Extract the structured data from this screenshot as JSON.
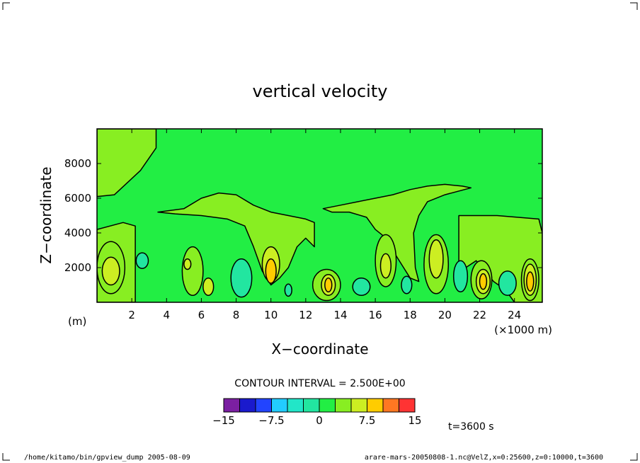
{
  "chart_data": {
    "type": "heatmap",
    "title": "vertical velocity",
    "xlabel": "X−coordinate",
    "ylabel": "Z−coordinate",
    "x_unit_label": "(×1000 m)",
    "y_unit_label": "(m)",
    "xlim": [
      0,
      25.6
    ],
    "ylim": [
      0,
      10000
    ],
    "x_ticks": [
      2,
      4,
      6,
      8,
      10,
      12,
      14,
      16,
      18,
      20,
      22,
      24
    ],
    "x_tick_labels": [
      "2",
      "4",
      "6",
      "8",
      "10",
      "12",
      "14",
      "16",
      "18",
      "20",
      "22",
      "24"
    ],
    "y_ticks": [
      2000,
      4000,
      6000,
      8000
    ],
    "y_tick_labels": [
      "2000",
      "4000",
      "6000",
      "8000"
    ],
    "contour_interval_label": "CONTOUR INTERVAL = 2.500E+00",
    "colorbar": {
      "levels": [
        -15,
        -12.5,
        -10,
        -7.5,
        -5,
        -2.5,
        0,
        2.5,
        5,
        7.5,
        10,
        12.5,
        15
      ],
      "colors": [
        "#7b1fa2",
        "#1a1acd",
        "#2244ff",
        "#22ccff",
        "#22e6c8",
        "#22e6a0",
        "#22ee44",
        "#88ee22",
        "#ccee22",
        "#ffcc00",
        "#ff7722",
        "#ff3333",
        "#ff9999"
      ],
      "tick_values": [
        -15,
        -7.5,
        0,
        7.5,
        15
      ],
      "tick_labels": [
        "−15",
        "−7.5",
        "0",
        "7.5",
        "15"
      ]
    },
    "background_level_color": "#22ee44",
    "regions": [
      {
        "level": 2.5,
        "color": "#88ee22",
        "shape": "band",
        "points": [
          [
            0,
            4200
          ],
          [
            1.5,
            4600
          ],
          [
            2.2,
            4400
          ],
          [
            2.2,
            0
          ],
          [
            0,
            0
          ]
        ]
      },
      {
        "level": 2.5,
        "color": "#88ee22",
        "shape": "band",
        "points": [
          [
            0,
            6100
          ],
          [
            1,
            6200
          ],
          [
            2.5,
            7600
          ],
          [
            3.4,
            8900
          ],
          [
            3.4,
            10000
          ],
          [
            0,
            10000
          ]
        ]
      },
      {
        "level": 2.5,
        "color": "#88ee22",
        "shape": "band",
        "points": [
          [
            3.5,
            5200
          ],
          [
            5,
            5400
          ],
          [
            6,
            6000
          ],
          [
            7,
            6300
          ],
          [
            8,
            6200
          ],
          [
            9,
            5600
          ],
          [
            10,
            5200
          ],
          [
            11,
            5000
          ],
          [
            12,
            4800
          ],
          [
            12.5,
            4600
          ],
          [
            12.5,
            3200
          ],
          [
            12,
            3700
          ],
          [
            11.5,
            3200
          ],
          [
            11,
            2000
          ],
          [
            10.5,
            1400
          ],
          [
            10,
            1000
          ],
          [
            9.5,
            1800
          ],
          [
            9,
            3200
          ],
          [
            8.5,
            4400
          ],
          [
            7.5,
            4800
          ],
          [
            6,
            5000
          ],
          [
            4.5,
            5100
          ]
        ]
      },
      {
        "level": 2.5,
        "color": "#88ee22",
        "shape": "band",
        "points": [
          [
            13,
            5400
          ],
          [
            14,
            5600
          ],
          [
            15,
            5800
          ],
          [
            16,
            6000
          ],
          [
            17,
            6200
          ],
          [
            18,
            6500
          ],
          [
            19,
            6700
          ],
          [
            20,
            6800
          ],
          [
            21,
            6700
          ],
          [
            21.5,
            6600
          ],
          [
            20,
            6200
          ],
          [
            19,
            5800
          ],
          [
            18.5,
            5000
          ],
          [
            18.2,
            4000
          ],
          [
            18.3,
            2000
          ],
          [
            18.5,
            1200
          ],
          [
            18,
            1400
          ],
          [
            17.5,
            2200
          ],
          [
            16.5,
            3800
          ],
          [
            16,
            4200
          ],
          [
            15.5,
            4900
          ],
          [
            14.5,
            5200
          ],
          [
            13.5,
            5200
          ]
        ]
      },
      {
        "level": 2.5,
        "color": "#88ee22",
        "shape": "band",
        "points": [
          [
            20.8,
            5000
          ],
          [
            23,
            5000
          ],
          [
            25.4,
            4800
          ],
          [
            25.6,
            4000
          ],
          [
            25.6,
            0
          ],
          [
            24,
            0
          ],
          [
            23.5,
            700
          ],
          [
            22.8,
            1200
          ],
          [
            22.3,
            1800
          ],
          [
            21.8,
            2400
          ],
          [
            21.2,
            2000
          ],
          [
            20.8,
            1000
          ]
        ]
      },
      {
        "level": 2.5,
        "color": "#88ee22",
        "shape": "blob",
        "cx": 5.5,
        "cy": 1800,
        "rx": 0.6,
        "ry": 1400
      },
      {
        "level": 2.5,
        "color": "#88ee22",
        "shape": "blob",
        "cx": 13.2,
        "cy": 1000,
        "rx": 0.8,
        "ry": 900
      },
      {
        "level": 2.5,
        "color": "#88ee22",
        "shape": "blob",
        "cx": 16.6,
        "cy": 2400,
        "rx": 0.6,
        "ry": 1500
      },
      {
        "level": 2.5,
        "color": "#88ee22",
        "shape": "blob",
        "cx": 19.5,
        "cy": 2200,
        "rx": 0.7,
        "ry": 1700
      },
      {
        "level": 2.5,
        "color": "#88ee22",
        "shape": "blob",
        "cx": 22.1,
        "cy": 1300,
        "rx": 0.6,
        "ry": 1100
      },
      {
        "level": 2.5,
        "color": "#88ee22",
        "shape": "blob",
        "cx": 24.9,
        "cy": 1300,
        "rx": 0.5,
        "ry": 1200
      },
      {
        "level": 2.5,
        "color": "#88ee22",
        "shape": "blob",
        "cx": 0.8,
        "cy": 2000,
        "rx": 0.8,
        "ry": 1500
      },
      {
        "level": 5,
        "color": "#ccee22",
        "shape": "blob",
        "cx": 0.8,
        "cy": 1800,
        "rx": 0.5,
        "ry": 800
      },
      {
        "level": 5,
        "color": "#ccee22",
        "shape": "blob",
        "cx": 5.2,
        "cy": 2200,
        "rx": 0.2,
        "ry": 300
      },
      {
        "level": 5,
        "color": "#ccee22",
        "shape": "blob",
        "cx": 10,
        "cy": 2200,
        "rx": 0.5,
        "ry": 1000
      },
      {
        "level": 5,
        "color": "#ccee22",
        "shape": "blob",
        "cx": 13.3,
        "cy": 1000,
        "rx": 0.4,
        "ry": 600
      },
      {
        "level": 5,
        "color": "#ccee22",
        "shape": "blob",
        "cx": 16.6,
        "cy": 2100,
        "rx": 0.3,
        "ry": 700
      },
      {
        "level": 5,
        "color": "#ccee22",
        "shape": "blob",
        "cx": 19.5,
        "cy": 2500,
        "rx": 0.4,
        "ry": 1100
      },
      {
        "level": 5,
        "color": "#ccee22",
        "shape": "blob",
        "cx": 22.2,
        "cy": 1200,
        "rx": 0.4,
        "ry": 700
      },
      {
        "level": 5,
        "color": "#ccee22",
        "shape": "blob",
        "cx": 24.9,
        "cy": 1300,
        "rx": 0.35,
        "ry": 900
      },
      {
        "level": 5,
        "color": "#ccee22",
        "shape": "blob",
        "cx": 6.4,
        "cy": 900,
        "rx": 0.3,
        "ry": 500
      },
      {
        "level": 7.5,
        "color": "#ffcc00",
        "shape": "blob",
        "cx": 10,
        "cy": 1800,
        "rx": 0.3,
        "ry": 700
      },
      {
        "level": 7.5,
        "color": "#ffcc00",
        "shape": "blob",
        "cx": 13.3,
        "cy": 1000,
        "rx": 0.2,
        "ry": 400
      },
      {
        "level": 7.5,
        "color": "#ffcc00",
        "shape": "blob",
        "cx": 22.2,
        "cy": 1200,
        "rx": 0.2,
        "ry": 450
      },
      {
        "level": 7.5,
        "color": "#ffcc00",
        "shape": "blob",
        "cx": 24.9,
        "cy": 1200,
        "rx": 0.2,
        "ry": 550
      },
      {
        "level": -2.5,
        "color": "#22e6a0",
        "shape": "blob",
        "cx": 2.6,
        "cy": 2400,
        "rx": 0.35,
        "ry": 450
      },
      {
        "level": -2.5,
        "color": "#22e6a0",
        "shape": "blob",
        "cx": 8.3,
        "cy": 1400,
        "rx": 0.6,
        "ry": 1100
      },
      {
        "level": -2.5,
        "color": "#22e6a0",
        "shape": "blob",
        "cx": 15.2,
        "cy": 900,
        "rx": 0.5,
        "ry": 500
      },
      {
        "level": -2.5,
        "color": "#22e6a0",
        "shape": "blob",
        "cx": 20.9,
        "cy": 1500,
        "rx": 0.4,
        "ry": 900
      },
      {
        "level": -2.5,
        "color": "#22e6a0",
        "shape": "blob",
        "cx": 23.6,
        "cy": 1100,
        "rx": 0.5,
        "ry": 700
      },
      {
        "level": -2.5,
        "color": "#22e6a0",
        "shape": "blob",
        "cx": 11,
        "cy": 700,
        "rx": 0.2,
        "ry": 350
      },
      {
        "level": -2.5,
        "color": "#22e6a0",
        "shape": "blob",
        "cx": 17.8,
        "cy": 1000,
        "rx": 0.3,
        "ry": 500
      }
    ]
  },
  "time_label": "t=3600 s",
  "footer": {
    "left": "/home/kitamo/bin/gpview_dump  2005-08-09",
    "right": "arare-mars-20050808-1.nc@VelZ,x=0:25600,z=0:10000,t=3600"
  }
}
